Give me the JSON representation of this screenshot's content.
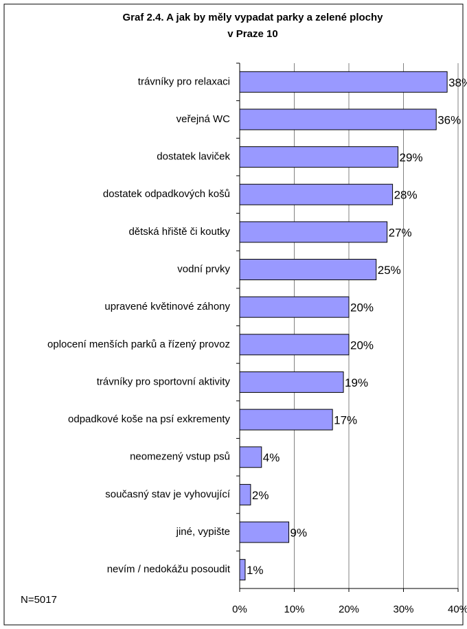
{
  "chart_data": {
    "type": "barh",
    "title": "Graf 2.4. A jak by měly vypadat parky a zelené plochy",
    "subtitle": "v Praze 10",
    "annotation": "N=5017",
    "categories": [
      "trávníky pro relaxaci",
      "veřejná WC",
      "dostatek laviček",
      "dostatek odpadkových košů",
      "dětská hřiště či koutky",
      "vodní prvky",
      "upravené květinové záhony",
      "oplocení menších parků a řízený provoz",
      "trávníky pro sportovní aktivity",
      "odpadkové koše na psí exkrementy",
      "neomezený vstup psů",
      "současný stav je vyhovující",
      "jiné, vypište",
      "nevím / nedokážu posoudit"
    ],
    "values": [
      38,
      36,
      29,
      28,
      27,
      25,
      20,
      20,
      19,
      17,
      4,
      2,
      9,
      1
    ],
    "value_labels": [
      "38%",
      "36%",
      "29%",
      "28%",
      "27%",
      "25%",
      "20%",
      "20%",
      "19%",
      "17%",
      "4%",
      "2%",
      "9%",
      "1%"
    ],
    "color": "#9999ff",
    "xlim": [
      0,
      40
    ],
    "xticks": [
      {
        "value": 0,
        "label": "0%"
      },
      {
        "value": 10,
        "label": "10%"
      },
      {
        "value": 20,
        "label": "20%"
      },
      {
        "value": 30,
        "label": "30%"
      },
      {
        "value": 40,
        "label": "40%"
      }
    ],
    "grid": true
  }
}
